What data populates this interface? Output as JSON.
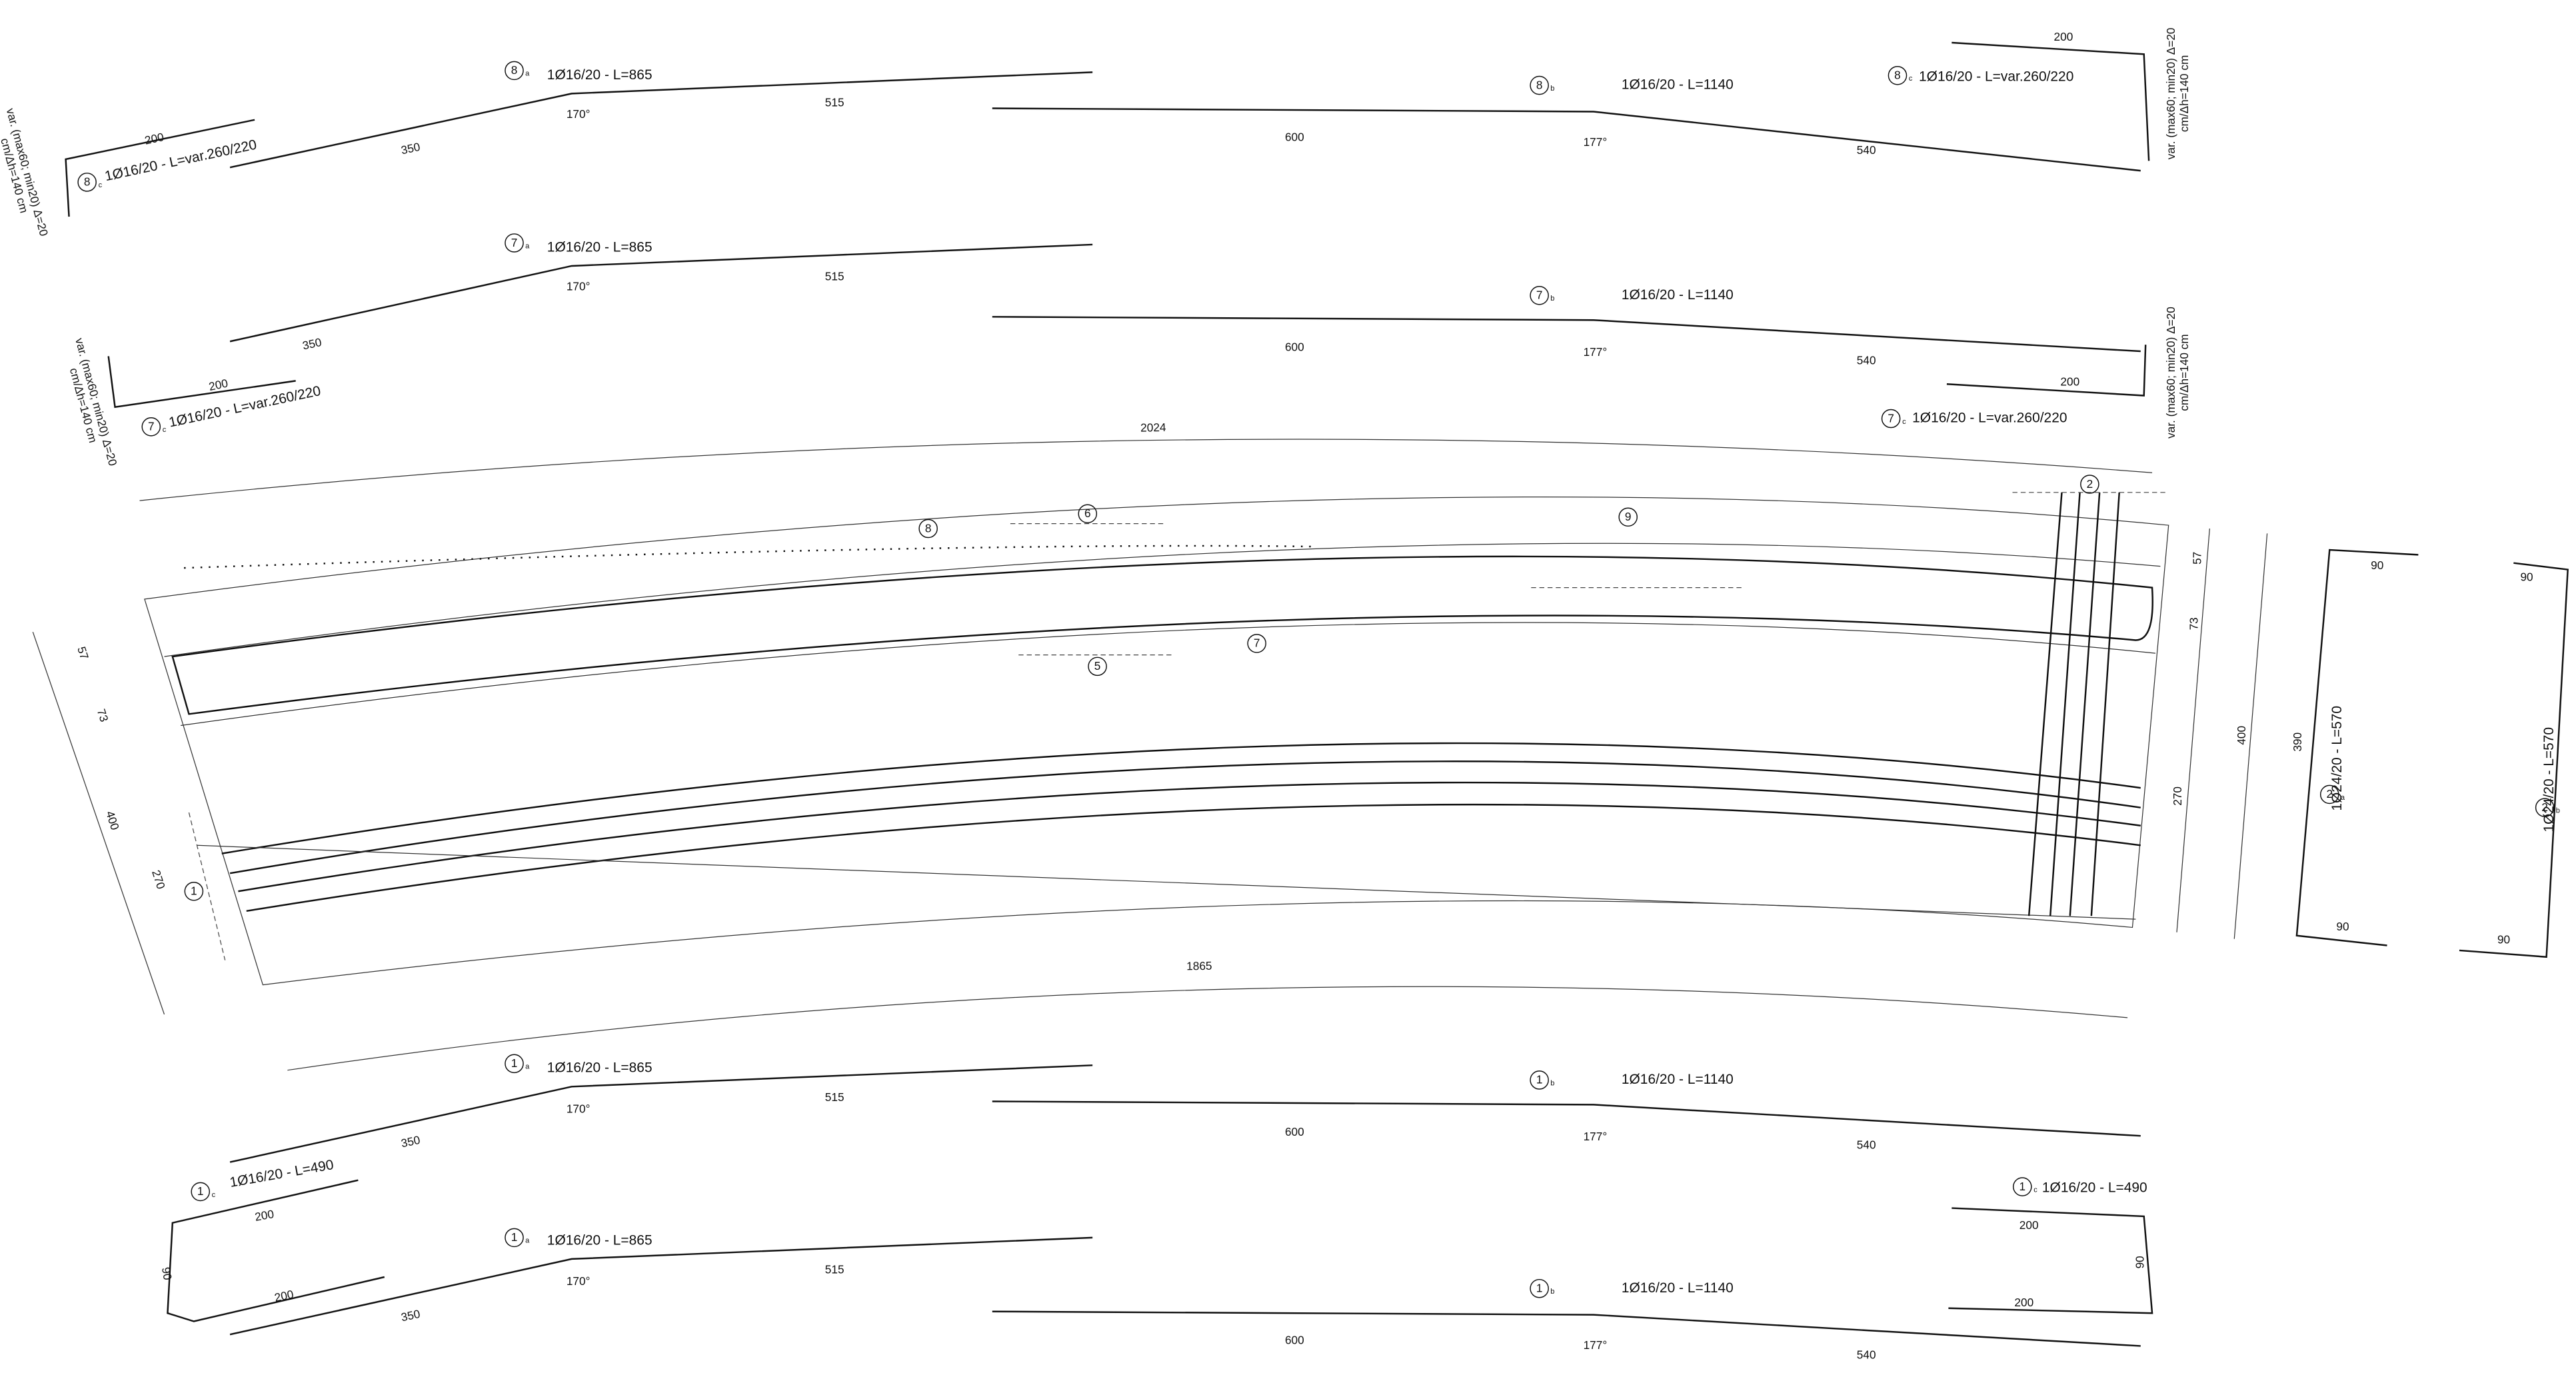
{
  "bars": [
    {
      "mark": "8",
      "sub": "a",
      "spec": "1Ø16/20 - L=865",
      "dims": [
        "350",
        "170°",
        "515"
      ]
    },
    {
      "mark": "8",
      "sub": "b",
      "spec": "1Ø16/20 - L=1140",
      "dims": [
        "600",
        "177°",
        "540"
      ]
    },
    {
      "mark": "8",
      "sub": "c",
      "spec": "1Ø16/20 - L=var.260/220",
      "dims": [
        "200"
      ],
      "note": [
        "var. (max60; min20) Δ=20",
        "cm/Δh=140 cm"
      ]
    },
    {
      "mark": "8",
      "sub": "c",
      "spec": "1Ø16/20 - L=var.260/220",
      "dims": [
        "200"
      ],
      "note": [
        "var. (max60; min20) Δ=20",
        "cm/Δh=140 cm"
      ]
    },
    {
      "mark": "7",
      "sub": "a",
      "spec": "1Ø16/20 - L=865",
      "dims": [
        "350",
        "170°",
        "515"
      ]
    },
    {
      "mark": "7",
      "sub": "b",
      "spec": "1Ø16/20 - L=1140",
      "dims": [
        "600",
        "177°",
        "540"
      ]
    },
    {
      "mark": "7",
      "sub": "c",
      "spec": "1Ø16/20 - L=var.260/220",
      "dims": [
        "200"
      ],
      "note": [
        "var. (max60; min20) Δ=20",
        "cm/Δh=140 cm"
      ]
    },
    {
      "mark": "7",
      "sub": "c",
      "spec": "1Ø16/20 - L=var.260/220",
      "dims": [
        "200"
      ],
      "note": [
        "var. (max60; min20) Δ=20",
        "cm/Δh=140 cm"
      ]
    },
    {
      "mark": "1",
      "sub": "a",
      "spec": "1Ø16/20 - L=865",
      "dims": [
        "350",
        "170°",
        "515"
      ]
    },
    {
      "mark": "1",
      "sub": "b",
      "spec": "1Ø16/20 - L=1140",
      "dims": [
        "600",
        "177°",
        "540"
      ]
    },
    {
      "mark": "1",
      "sub": "a",
      "spec": "1Ø16/20 - L=865",
      "dims": [
        "350",
        "170°",
        "515"
      ]
    },
    {
      "mark": "1",
      "sub": "b",
      "spec": "1Ø16/20 - L=1140",
      "dims": [
        "600",
        "177°",
        "540"
      ]
    },
    {
      "mark": "1",
      "sub": "c",
      "spec": "1Ø16/20 - L=490",
      "dims": [
        "200",
        "200",
        "90"
      ]
    },
    {
      "mark": "1",
      "sub": "c",
      "spec": "1Ø16/20 - L=490",
      "dims": [
        "200",
        "200",
        "90"
      ]
    }
  ],
  "section": {
    "dim_top": "2024",
    "dim_bottom": "1865",
    "callouts": [
      "8",
      "6",
      "9",
      "5",
      "7",
      "2",
      "1"
    ],
    "left_dims": [
      "57",
      "73",
      "400",
      "270"
    ],
    "right_dims": [
      "57",
      "73",
      "270",
      "400"
    ]
  },
  "bar2": {
    "dims": [
      "390",
      "90",
      "90",
      "90",
      "90"
    ],
    "details": [
      {
        "mark": "2",
        "sub": "a",
        "spec": "1Ø24/20 - L=570"
      },
      {
        "mark": "2",
        "sub": "b",
        "spec": "1Ø24/20 - L=570"
      }
    ]
  }
}
